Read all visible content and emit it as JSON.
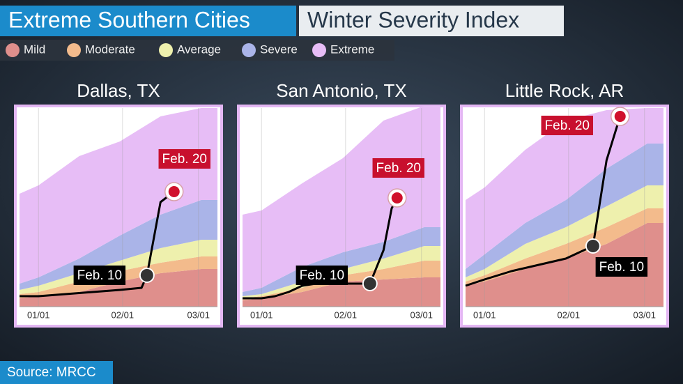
{
  "header": {
    "title": "Extreme Southern Cities",
    "subtitle": "Winter Severity Index"
  },
  "legend": [
    {
      "name": "Mild",
      "color": "#df8f8c"
    },
    {
      "name": "Moderate",
      "color": "#f3bb8c"
    },
    {
      "name": "Average",
      "color": "#eef0ad"
    },
    {
      "name": "Severe",
      "color": "#aab4e8"
    },
    {
      "name": "Extreme",
      "color": "#e7bdf6"
    }
  ],
  "chart_data": [
    {
      "type": "area",
      "stacked": true,
      "title": "Dallas, TX",
      "x": [
        -7,
        0,
        15,
        30,
        45,
        60,
        66
      ],
      "xlim": [
        -7,
        66
      ],
      "xticks": [
        {
          "value": 0,
          "label": "01/01"
        },
        {
          "value": 31,
          "label": "02/01"
        },
        {
          "value": 59,
          "label": "03/01"
        }
      ],
      "ylim": [
        0,
        95
      ],
      "grid": true,
      "series": [
        {
          "values": [
            4,
            5,
            7,
            12,
            16,
            18,
            18
          ]
        },
        {
          "values": [
            2,
            2,
            5,
            5,
            5,
            6,
            6
          ]
        },
        {
          "values": [
            2,
            3,
            4,
            5,
            7,
            8,
            8
          ]
        },
        {
          "values": [
            3,
            4,
            7,
            12,
            16,
            19,
            19
          ]
        },
        {
          "values": [
            43,
            44,
            49,
            45,
            47,
            44,
            44
          ]
        }
      ],
      "line": {
        "color": "#000000",
        "x": [
          -7,
          0,
          10,
          20,
          30,
          38,
          40,
          45,
          50
        ],
        "values": [
          5,
          5,
          6,
          7,
          8,
          9,
          15,
          50,
          55
        ]
      },
      "annotations": [
        {
          "text": "Feb. 10",
          "x": 40,
          "y": 15,
          "color": "#000000",
          "point_color": "#333333"
        },
        {
          "text": "Feb. 20",
          "x": 50,
          "y": 55,
          "color": "#c8102e",
          "point_color": "#d0102c"
        }
      ]
    },
    {
      "type": "area",
      "stacked": true,
      "title": "San Antonio, TX",
      "x": [
        -7,
        0,
        15,
        30,
        45,
        60,
        66
      ],
      "xlim": [
        -7,
        66
      ],
      "xticks": [
        {
          "value": 0,
          "label": "01/01"
        },
        {
          "value": 31,
          "label": "02/01"
        },
        {
          "value": 59,
          "label": "03/01"
        }
      ],
      "ylim": [
        0,
        95
      ],
      "grid": true,
      "series": [
        {
          "values": [
            3,
            4,
            7,
            12,
            13,
            14,
            14
          ]
        },
        {
          "values": [
            1,
            1,
            2,
            3,
            5,
            8,
            8
          ]
        },
        {
          "values": [
            1,
            1,
            3,
            3,
            5,
            7,
            7
          ]
        },
        {
          "values": [
            2,
            3,
            7,
            8,
            8,
            9,
            9
          ]
        },
        {
          "values": [
            37,
            37,
            40,
            45,
            58,
            58,
            58
          ]
        }
      ],
      "line": {
        "color": "#000000",
        "x": [
          -7,
          0,
          5,
          10,
          15,
          20,
          30,
          40,
          45,
          48,
          50
        ],
        "values": [
          4,
          4,
          5,
          7,
          10,
          11,
          11,
          11,
          27,
          47,
          52
        ]
      },
      "annotations": [
        {
          "text": "Feb. 10",
          "x": 40,
          "y": 11,
          "color": "#000000",
          "point_color": "#333333"
        },
        {
          "text": "Feb. 20",
          "x": 50,
          "y": 52,
          "color": "#c8102e",
          "point_color": "#d0102c"
        }
      ]
    },
    {
      "type": "area",
      "stacked": true,
      "title": "Little Rock, AR",
      "x": [
        -7,
        0,
        15,
        30,
        45,
        60,
        66
      ],
      "xlim": [
        -7,
        66
      ],
      "xticks": [
        {
          "value": 0,
          "label": "01/01"
        },
        {
          "value": 31,
          "label": "02/01"
        },
        {
          "value": 59,
          "label": "03/01"
        }
      ],
      "ylim": [
        0,
        95
      ],
      "grid": true,
      "series": [
        {
          "values": [
            10,
            12,
            18,
            23,
            30,
            40,
            40
          ]
        },
        {
          "values": [
            2,
            3,
            5,
            7,
            8,
            7,
            7
          ]
        },
        {
          "values": [
            2,
            3,
            7,
            8,
            10,
            11,
            11
          ]
        },
        {
          "values": [
            4,
            7,
            10,
            13,
            18,
            20,
            20
          ]
        },
        {
          "values": [
            33,
            32,
            35,
            38,
            28,
            17,
            17
          ]
        }
      ],
      "line": {
        "color": "#000000",
        "x": [
          -7,
          0,
          10,
          20,
          30,
          40,
          45,
          50
        ],
        "values": [
          10,
          13,
          17,
          20,
          23,
          29,
          70,
          91
        ]
      },
      "annotations": [
        {
          "text": "Feb. 10",
          "x": 40,
          "y": 29,
          "color": "#000000",
          "point_color": "#333333"
        },
        {
          "text": "Feb. 20",
          "x": 50,
          "y": 91,
          "color": "#c8102e",
          "point_color": "#d0102c"
        }
      ]
    }
  ],
  "source": "Source: MRCC"
}
